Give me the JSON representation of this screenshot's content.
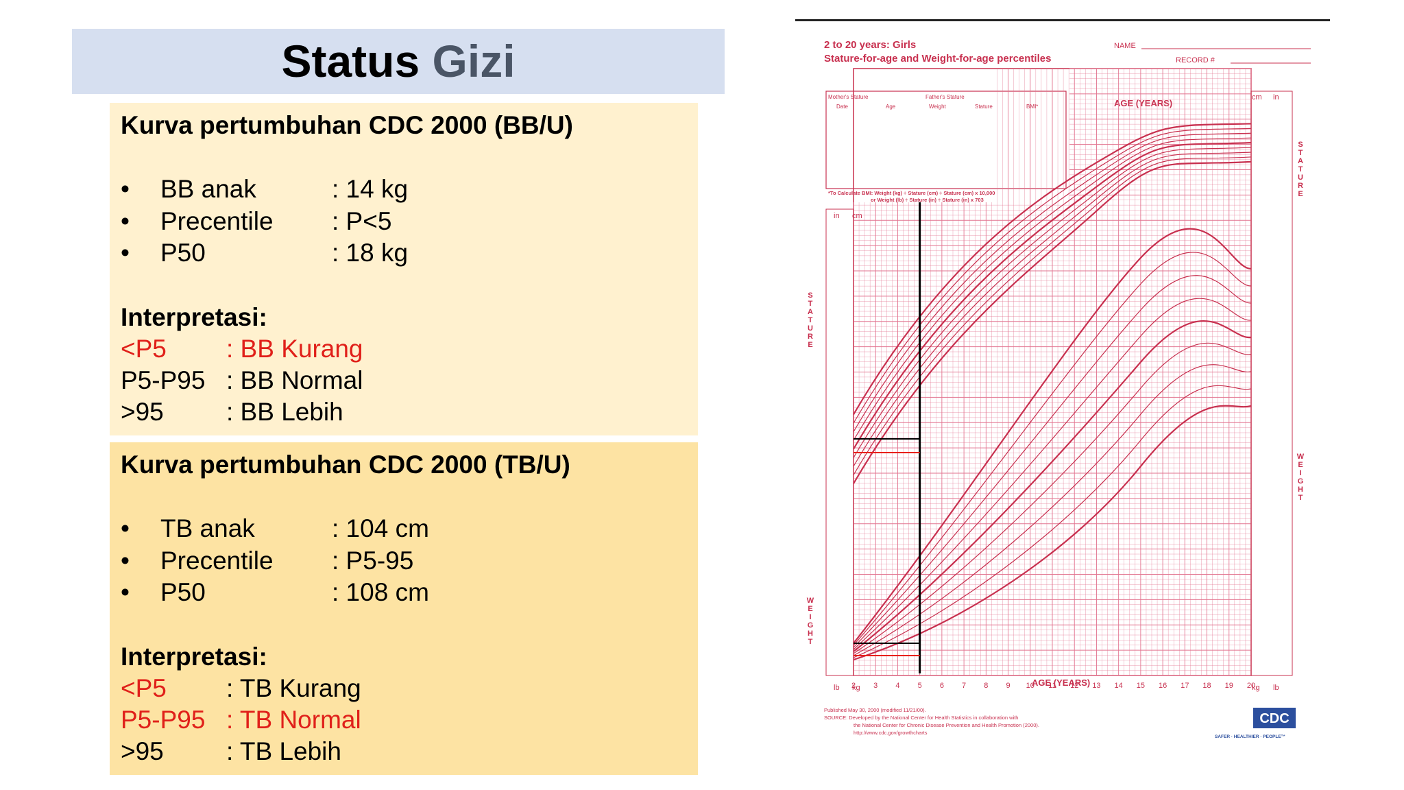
{
  "title": {
    "part1": "Status",
    "part2": "Gizi"
  },
  "panel_bb": {
    "title": "Kurva pertumbuhan CDC 2000 (BB/U)",
    "items": [
      {
        "bullet": "•",
        "label": "BB anak",
        "value": ": 14 kg"
      },
      {
        "bullet": "•",
        "label": "Precentile",
        "value": ": P<5"
      },
      {
        "bullet": "•",
        "label": "P50",
        "value": ": 18 kg"
      }
    ],
    "interp_heading": "Interpretasi:",
    "interp": [
      {
        "code": "<P5",
        "text": ": BB Kurang"
      },
      {
        "code": "P5-P95",
        "text": ": BB Normal"
      },
      {
        "code": ">95",
        "text": ": BB Lebih"
      }
    ]
  },
  "panel_tb": {
    "title": "Kurva pertumbuhan CDC 2000 (TB/U)",
    "items": [
      {
        "bullet": "•",
        "label": "TB anak",
        "value": ": 104 cm"
      },
      {
        "bullet": "•",
        "label": "Precentile",
        "value": ": P5-95"
      },
      {
        "bullet": "•",
        "label": "P50",
        "value": ": 108 cm"
      }
    ],
    "interp_heading": "Interpretasi:",
    "interp": [
      {
        "code": "<P5",
        "text": ": TB Kurang"
      },
      {
        "code": "P5-P95",
        "text": ": TB Normal"
      },
      {
        "code": ">95",
        "text": ": TB Lebih"
      }
    ]
  },
  "cdc_chart": {
    "header1": "2 to 20 years: Girls",
    "header2": "Stature-for-age and Weight-for-age percentiles",
    "name_label": "NAME",
    "record_label": "RECORD #",
    "age_label": "AGE (YEARS)",
    "stature_label": "STATURE",
    "weight_label": "WEIGHT",
    "table_head1": [
      "Mother's Stature",
      "Father's Stature"
    ],
    "table_cols": [
      "Date",
      "Age",
      "Weight",
      "Stature",
      "BMI*"
    ],
    "bmi_note1": "*To Calculate BMI: Weight (kg) ÷ Stature (cm) ÷ Stature (cm) x 10,000",
    "bmi_note2": "or Weight (lb) ÷ Stature (in) ÷ Stature (in) x 703",
    "unit_in": "in",
    "unit_cm": "cm",
    "unit_lb": "lb",
    "unit_kg": "kg",
    "age_ticks": [
      "2",
      "3",
      "4",
      "5",
      "6",
      "7",
      "8",
      "9",
      "10",
      "11",
      "12",
      "13",
      "14",
      "15",
      "16",
      "17",
      "18",
      "19",
      "20"
    ],
    "footer": [
      "Published May 30, 2000 (modified 11/21/00).",
      "SOURCE: Developed by the National Center for Health Statistics in collaboration with",
      "the National Center for Chronic Disease Prevention and Health Promotion (2000).",
      "http://www.cdc.gov/growthcharts"
    ],
    "logo": "CDC",
    "slogan": "SAFER · HEALTHIER · PEOPLE™",
    "colors": {
      "grid": "#e2738f",
      "curve": "#c8304f",
      "marker_black": "#000000",
      "marker_red": "#e8201a"
    }
  }
}
